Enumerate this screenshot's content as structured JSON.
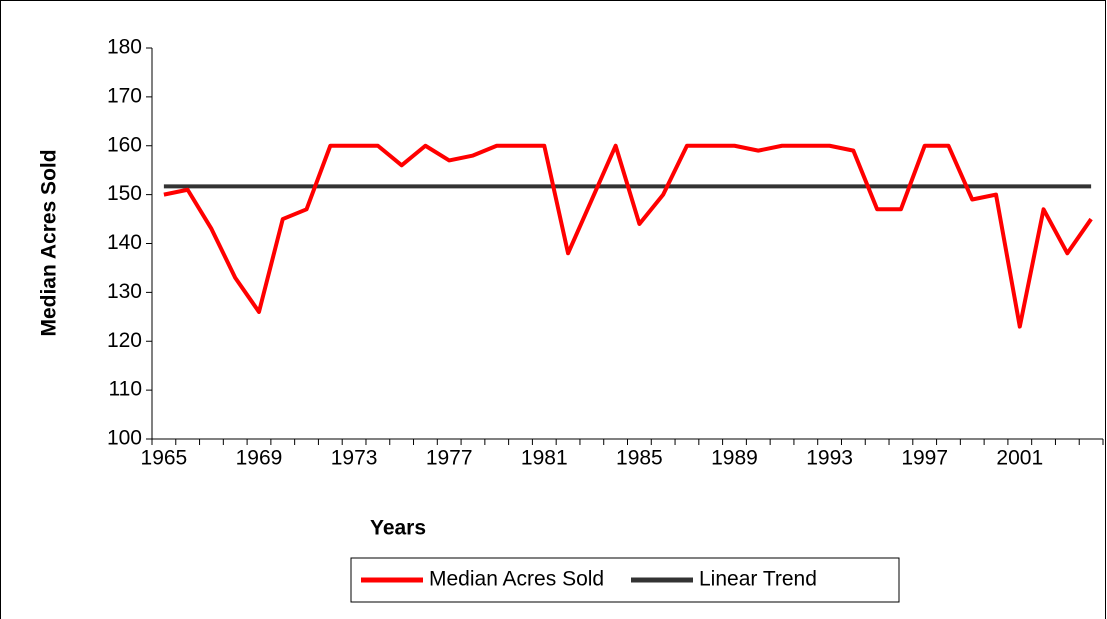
{
  "chart_data": {
    "type": "line",
    "x_label": "Years",
    "y_label": "Median Acres Sold",
    "categories": [
      "1965",
      null,
      null,
      null,
      "1969",
      null,
      null,
      null,
      "1973",
      null,
      null,
      null,
      "1977",
      null,
      null,
      null,
      "1981",
      null,
      null,
      null,
      "1985",
      null,
      null,
      null,
      "1989",
      null,
      null,
      null,
      "1993",
      null,
      null,
      null,
      "1997",
      null,
      null,
      null,
      "2001",
      null,
      null,
      null
    ],
    "series": [
      {
        "name": "Median Acres Sold",
        "color": "#ff0000",
        "values": [
          150,
          151,
          143,
          133,
          126,
          145,
          147,
          160,
          160,
          160,
          156,
          160,
          157,
          158,
          160,
          160,
          160,
          138,
          149,
          160,
          144,
          150,
          160,
          160,
          160,
          159,
          160,
          160,
          160,
          159,
          147,
          147,
          160,
          160,
          149,
          150,
          123,
          147,
          138,
          145
        ]
      },
      {
        "name": "Linear Trend",
        "color": "#333333",
        "values": [
          151.7,
          151.7,
          151.7,
          151.7,
          151.7,
          151.7,
          151.7,
          151.7,
          151.7,
          151.7,
          151.7,
          151.7,
          151.7,
          151.7,
          151.7,
          151.7,
          151.7,
          151.7,
          151.7,
          151.7,
          151.7,
          151.7,
          151.7,
          151.7,
          151.7,
          151.7,
          151.7,
          151.7,
          151.7,
          151.7,
          151.7,
          151.7,
          151.7,
          151.7,
          151.7,
          151.7,
          151.7,
          151.7,
          151.7,
          151.7
        ]
      }
    ],
    "ylim": [
      100,
      180
    ],
    "yticks": [
      100,
      110,
      120,
      130,
      140,
      150,
      160,
      170,
      180
    ],
    "grid": false,
    "legend": "bottom"
  }
}
